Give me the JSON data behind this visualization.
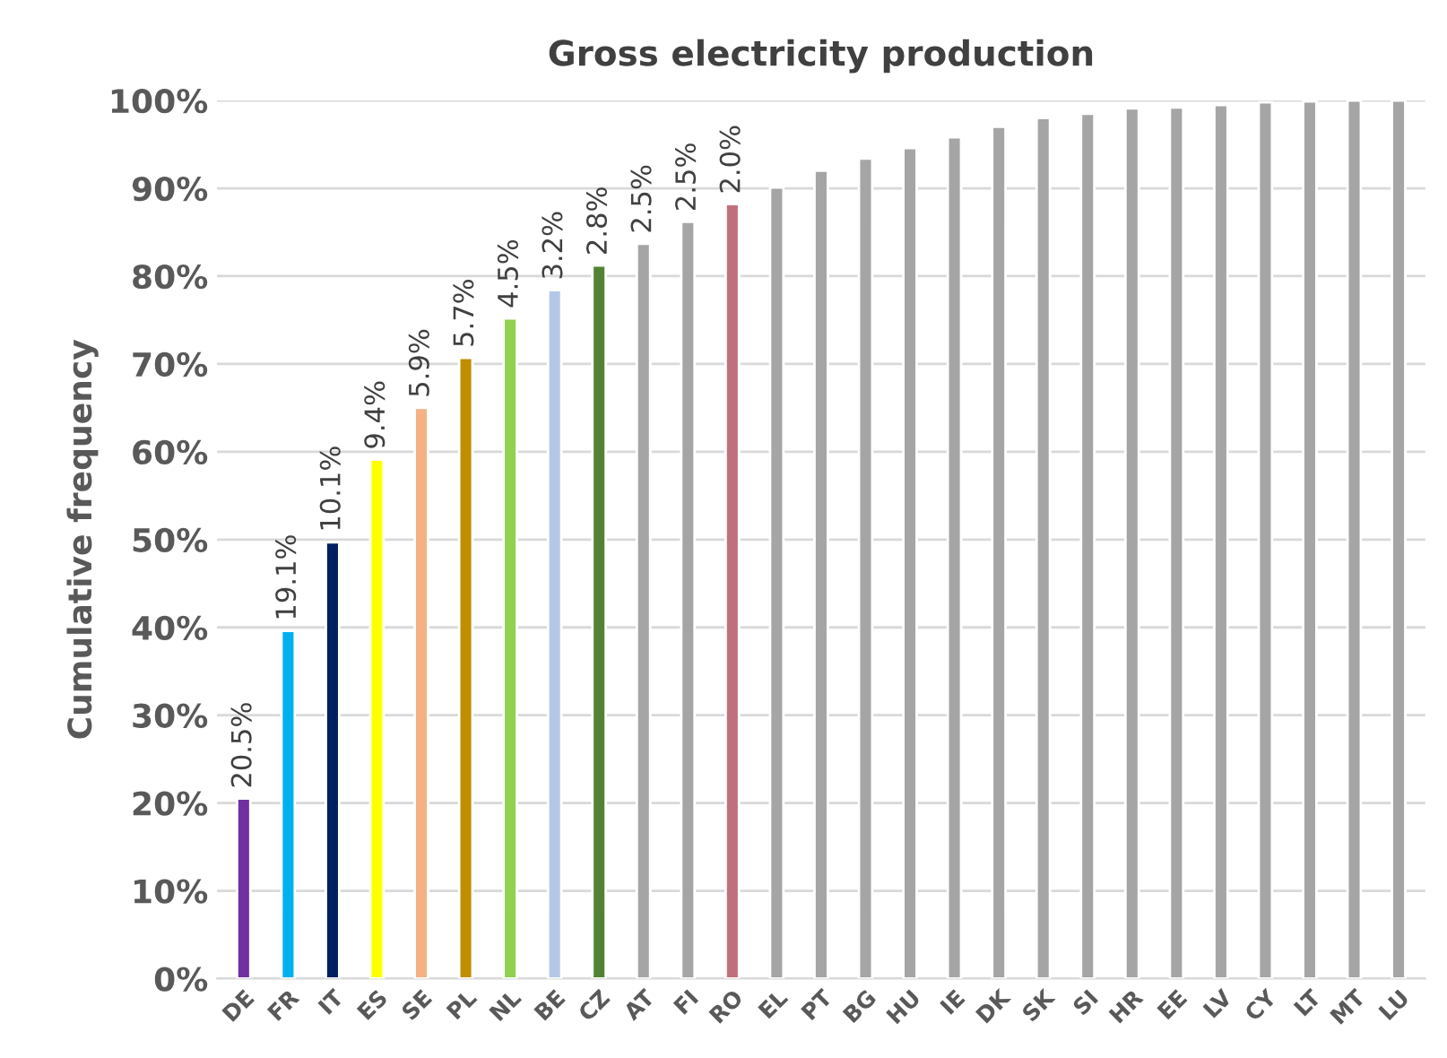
{
  "chart_data": {
    "type": "bar",
    "title": "Gross electricity production",
    "ylabel": "Cumulative frequency",
    "categories": [
      "DE",
      "FR",
      "IT",
      "ES",
      "SE",
      "PL",
      "NL",
      "BE",
      "CZ",
      "AT",
      "FI",
      "RO",
      "EL",
      "PT",
      "BG",
      "HU",
      "IE",
      "DK",
      "SK",
      "SI",
      "HR",
      "EE",
      "LV",
      "CY",
      "LT",
      "MT",
      "LU"
    ],
    "values": [
      20.5,
      39.6,
      49.7,
      59.1,
      65.0,
      70.7,
      75.2,
      78.4,
      81.2,
      83.7,
      86.2,
      88.2,
      90.1,
      92.0,
      93.4,
      94.6,
      95.8,
      97.0,
      98.0,
      98.5,
      99.1,
      99.2,
      99.5,
      99.8,
      99.9,
      100,
      100
    ],
    "colors": [
      "#7030a0",
      "#00b0f0",
      "#002060",
      "#ffff00",
      "#f4b183",
      "#bf8f00",
      "#92d050",
      "#b4c7e7",
      "#548235",
      "#a5a5a5",
      "#a5a5a5",
      "#c0707c",
      "#a5a5a5",
      "#a5a5a5",
      "#a5a5a5",
      "#a5a5a5",
      "#a5a5a5",
      "#a5a5a5",
      "#a5a5a5",
      "#a5a5a5",
      "#a5a5a5",
      "#a5a5a5",
      "#a5a5a5",
      "#a5a5a5",
      "#a5a5a5",
      "#a5a5a5",
      "#a5a5a5"
    ],
    "annotations": [
      {
        "text": "20.5%",
        "x": "DE",
        "y": 20.5
      },
      {
        "text": "19.1%",
        "x": "FR",
        "y": 39.6
      },
      {
        "text": "10.1%",
        "x": "IT",
        "y": 49.7
      },
      {
        "text": "9.4%",
        "x": "ES",
        "y": 59.1
      },
      {
        "text": "5.9%",
        "x": "SE",
        "y": 65.0
      },
      {
        "text": "5.7%",
        "x": "PL",
        "y": 70.7
      },
      {
        "text": "4.5%",
        "x": "NL",
        "y": 75.2
      },
      {
        "text": "3.2%",
        "x": "BE",
        "y": 78.4
      },
      {
        "text": "2.8%",
        "x": "CZ",
        "y": 81.2
      },
      {
        "text": "2.5%",
        "x": "AT",
        "y": 83.7
      },
      {
        "text": "2.5%",
        "x": "FI",
        "y": 86.2
      },
      {
        "text": "2.0%",
        "x": "RO",
        "y": 88.2
      }
    ],
    "ylim": [
      0,
      100
    ],
    "yticks": [
      {
        "value": 0,
        "label": "0%"
      },
      {
        "value": 10,
        "label": "10%"
      },
      {
        "value": 20,
        "label": "20%"
      },
      {
        "value": 30,
        "label": "30%"
      },
      {
        "value": 40,
        "label": "40%"
      },
      {
        "value": 50,
        "label": "50%"
      },
      {
        "value": 60,
        "label": "60%"
      },
      {
        "value": 70,
        "label": "70%"
      },
      {
        "value": 80,
        "label": "80%"
      },
      {
        "value": 90,
        "label": "90%"
      },
      {
        "value": 100,
        "label": "100%"
      }
    ],
    "grid": "y",
    "legend": false
  }
}
